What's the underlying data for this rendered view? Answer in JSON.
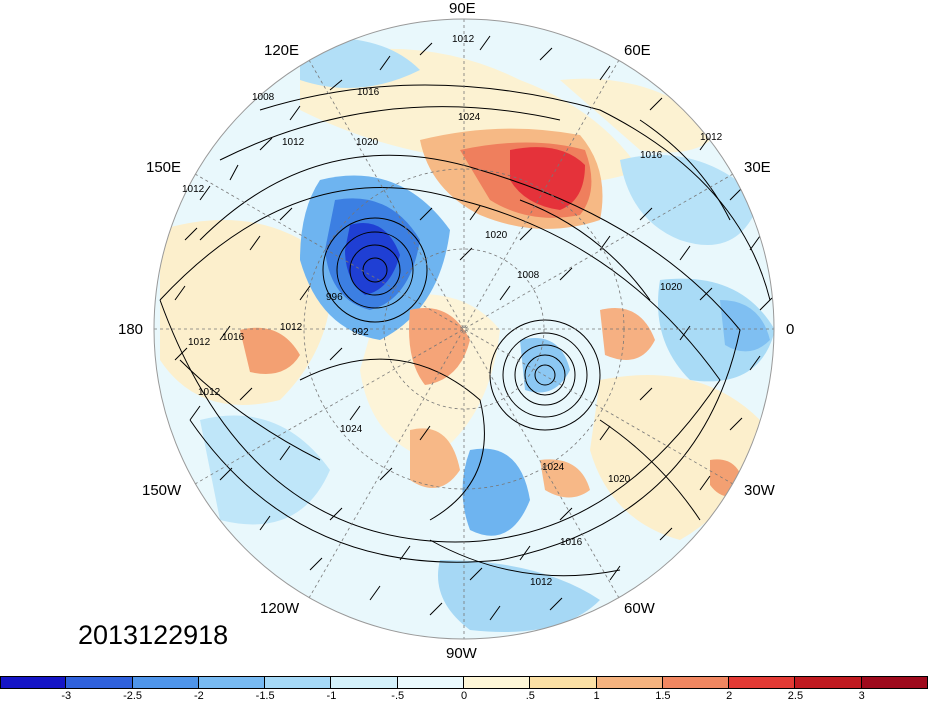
{
  "map": {
    "date_stamp": "2013122918",
    "projection": "north-polar-stereographic",
    "longitude_labels": {
      "lon_90e": "90E",
      "lon_120e": "120E",
      "lon_60e": "60E",
      "lon_150e": "150E",
      "lon_30e": "30E",
      "lon_180": "180",
      "lon_0": "0",
      "lon_150w": "150W",
      "lon_30w": "30W",
      "lon_120w": "120W",
      "lon_60w": "60W",
      "lon_90w": "90W"
    },
    "contour_labels": [
      "1012",
      "1016",
      "1008",
      "1012",
      "1020",
      "1024",
      "1012",
      "1016",
      "1012",
      "1020",
      "1008",
      "996",
      "992",
      "1012",
      "1012",
      "1016",
      "1012",
      "1024",
      "1020",
      "1016",
      "1012",
      "1024",
      "1020"
    ],
    "anomaly_centers": [
      {
        "name": "siberia-warm",
        "value": 3,
        "color": "#e8282a"
      },
      {
        "name": "east-siberia-cold",
        "value": -3,
        "color": "#1f1fd6"
      },
      {
        "name": "hudson-bay-low",
        "value": -1.5,
        "color": "#5aa7ee"
      },
      {
        "name": "alaska-warm",
        "value": 1.5,
        "color": "#f59a6f"
      }
    ]
  },
  "colorbar": {
    "ticks": [
      "-3",
      "-2.5",
      "-2",
      "-1.5",
      "-1",
      "-.5",
      "0",
      ".5",
      "1",
      "1.5",
      "2",
      "2.5",
      "3"
    ],
    "colors": [
      "#1515c6",
      "#2f61dc",
      "#4f95ea",
      "#78baf2",
      "#a6d9f7",
      "#d4f1fb",
      "#eaf9fd",
      "#fdf6d7",
      "#fbe0a5",
      "#f5b37f",
      "#f18761",
      "#e33a34",
      "#c01a20",
      "#9e0a1c"
    ]
  }
}
